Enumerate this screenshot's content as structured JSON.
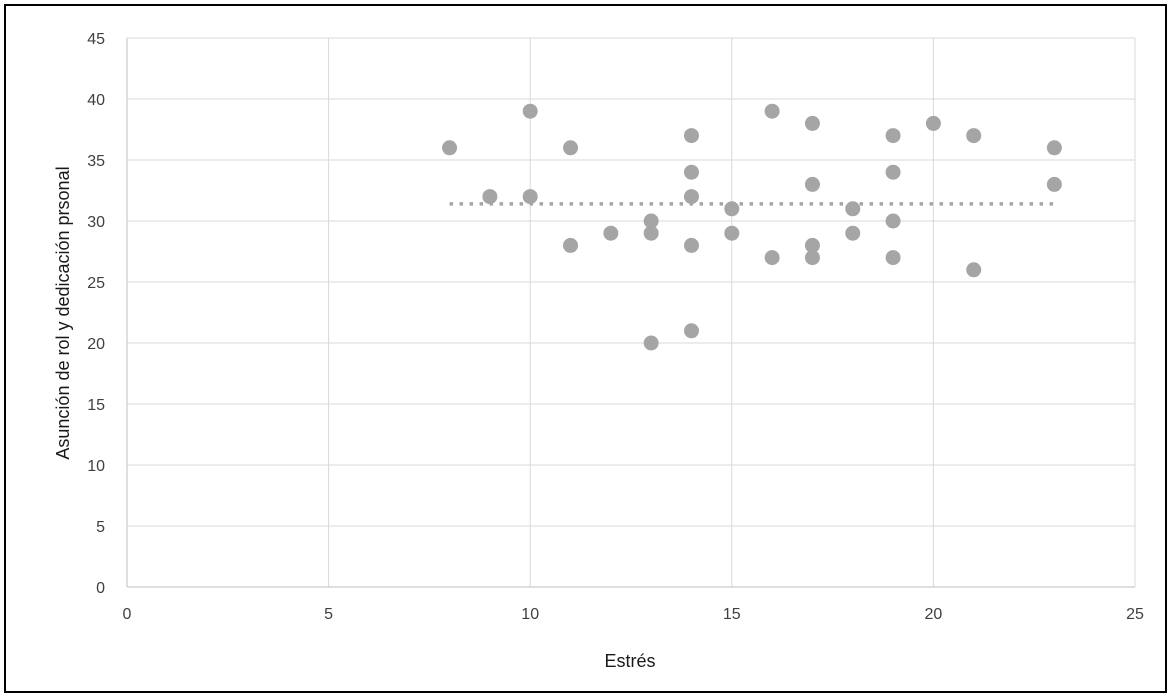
{
  "chart_data": {
    "type": "scatter",
    "title": "",
    "xlabel": "Estrés",
    "ylabel": "Asunción de rol y dedicación prsonal",
    "xlim": [
      0,
      25
    ],
    "ylim": [
      0,
      45
    ],
    "xticks": [
      0,
      5,
      10,
      15,
      20,
      25
    ],
    "yticks": [
      0,
      5,
      10,
      15,
      20,
      25,
      30,
      35,
      40,
      45
    ],
    "grid": true,
    "legend": "none",
    "points": [
      {
        "x": 8,
        "y": 36
      },
      {
        "x": 9,
        "y": 32
      },
      {
        "x": 10,
        "y": 39
      },
      {
        "x": 10,
        "y": 32
      },
      {
        "x": 11,
        "y": 36
      },
      {
        "x": 11,
        "y": 28
      },
      {
        "x": 12,
        "y": 29
      },
      {
        "x": 13,
        "y": 30
      },
      {
        "x": 13,
        "y": 29
      },
      {
        "x": 13,
        "y": 20
      },
      {
        "x": 14,
        "y": 37
      },
      {
        "x": 14,
        "y": 34
      },
      {
        "x": 14,
        "y": 32
      },
      {
        "x": 14,
        "y": 28
      },
      {
        "x": 14,
        "y": 21
      },
      {
        "x": 15,
        "y": 31
      },
      {
        "x": 15,
        "y": 29
      },
      {
        "x": 16,
        "y": 39
      },
      {
        "x": 16,
        "y": 27
      },
      {
        "x": 17,
        "y": 38
      },
      {
        "x": 17,
        "y": 33
      },
      {
        "x": 17,
        "y": 28
      },
      {
        "x": 17,
        "y": 27
      },
      {
        "x": 18,
        "y": 31
      },
      {
        "x": 18,
        "y": 29
      },
      {
        "x": 19,
        "y": 37
      },
      {
        "x": 19,
        "y": 34
      },
      {
        "x": 19,
        "y": 30
      },
      {
        "x": 19,
        "y": 27
      },
      {
        "x": 20,
        "y": 38
      },
      {
        "x": 21,
        "y": 37
      },
      {
        "x": 21,
        "y": 26
      },
      {
        "x": 23,
        "y": 36
      },
      {
        "x": 23,
        "y": 33
      }
    ],
    "trendline": {
      "style": "dotted",
      "x": [
        8,
        23
      ],
      "y": [
        31.4,
        31.4
      ]
    },
    "colors": {
      "marker": "#a5a5a5",
      "trendline": "#a5a5a5",
      "grid": "#d9d9d9",
      "axis": "#bfbfbf"
    }
  }
}
